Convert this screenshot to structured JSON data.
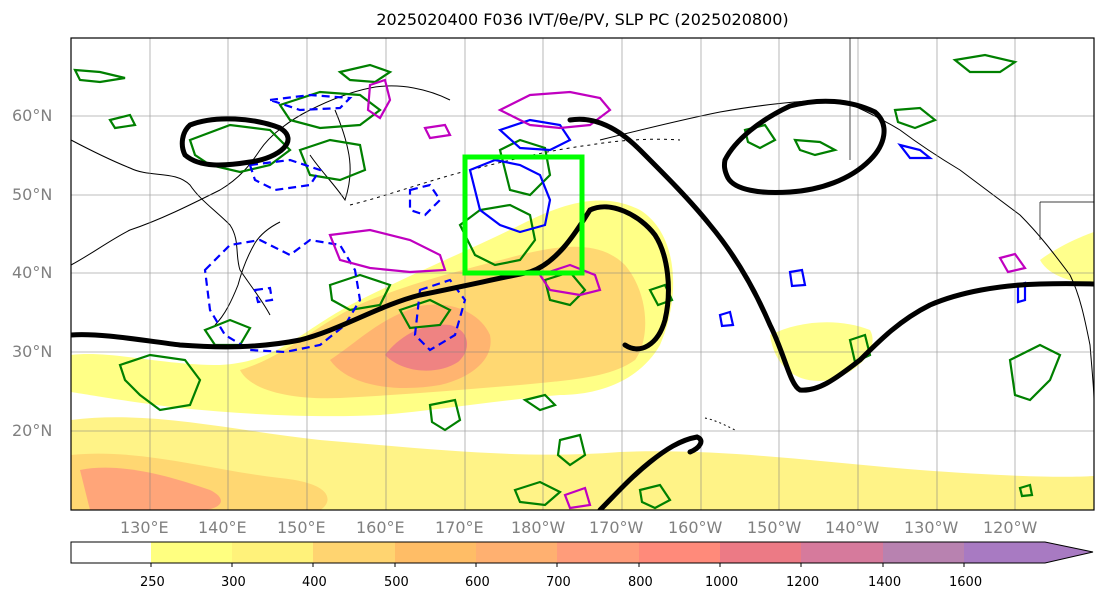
{
  "title": "2025020400 F036 IVT/θe/PV, SLP PC (2025020800)",
  "map": {
    "lat_labels": [
      "60°N",
      "50°N",
      "40°N",
      "30°N",
      "20°N"
    ],
    "lon_labels": [
      "130°E",
      "140°E",
      "150°E",
      "160°E",
      "170°E",
      "180°W",
      "170°W",
      "160°W",
      "150°W",
      "140°W",
      "130°W",
      "120°W"
    ],
    "colors": {
      "slp_pc": "#000000",
      "pv_positive": "#008000",
      "pv_negative": "#0000ff",
      "theta_e": "#c000c0",
      "target_box": "#00ff00",
      "grid": "#808080",
      "coastline": "#000000"
    }
  },
  "colorbar": {
    "levels": [
      "250",
      "300",
      "400",
      "500",
      "600",
      "700",
      "800",
      "1000",
      "1200",
      "1400",
      "1600"
    ],
    "colors": [
      "#ffffff",
      "#ffff80",
      "#fff27a",
      "#ffd470",
      "#ffbd66",
      "#ffb070",
      "#ff9c7a",
      "#ff8a7a",
      "#ec7a85",
      "#d67a9c",
      "#b882b0",
      "#a87ac2"
    ]
  }
}
